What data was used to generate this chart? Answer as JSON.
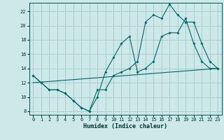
{
  "xlabel": "Humidex (Indice chaleur)",
  "background_color": "#cce8e8",
  "line_color": "#006666",
  "grid_color": "#aacccc",
  "xlim": [
    -0.5,
    23.5
  ],
  "ylim": [
    7.5,
    23.2
  ],
  "xticks": [
    0,
    1,
    2,
    3,
    4,
    5,
    6,
    7,
    8,
    9,
    10,
    11,
    12,
    13,
    14,
    15,
    16,
    17,
    18,
    19,
    20,
    21,
    22,
    23
  ],
  "yticks": [
    8,
    10,
    12,
    14,
    16,
    18,
    20,
    22
  ],
  "line1_x": [
    0,
    1,
    2,
    3,
    4,
    5,
    6,
    7,
    8,
    9,
    10,
    11,
    12,
    13,
    14,
    15,
    16,
    17,
    18,
    19,
    20,
    21,
    22,
    23
  ],
  "line1_y": [
    13,
    12,
    11,
    11,
    10.5,
    9.5,
    8.5,
    8,
    11,
    11,
    13,
    13.5,
    14,
    15,
    20.5,
    21.5,
    21,
    23,
    21.5,
    20.5,
    20.5,
    17.5,
    15,
    14
  ],
  "line2_x": [
    0,
    1,
    2,
    3,
    4,
    5,
    6,
    7,
    8,
    9,
    10,
    11,
    12,
    13,
    14,
    15,
    16,
    17,
    18,
    19,
    20,
    21,
    22,
    23
  ],
  "line2_y": [
    13,
    12,
    11,
    11,
    10.5,
    9.5,
    8.5,
    8,
    10,
    13.5,
    15.5,
    17.5,
    18.5,
    13.5,
    14,
    15,
    18.5,
    19,
    19,
    21,
    17.5,
    15,
    14,
    14
  ],
  "line3_x": [
    0,
    23
  ],
  "line3_y": [
    12.0,
    14.0
  ],
  "tick_fontsize": 5.0,
  "xlabel_fontsize": 6.0
}
